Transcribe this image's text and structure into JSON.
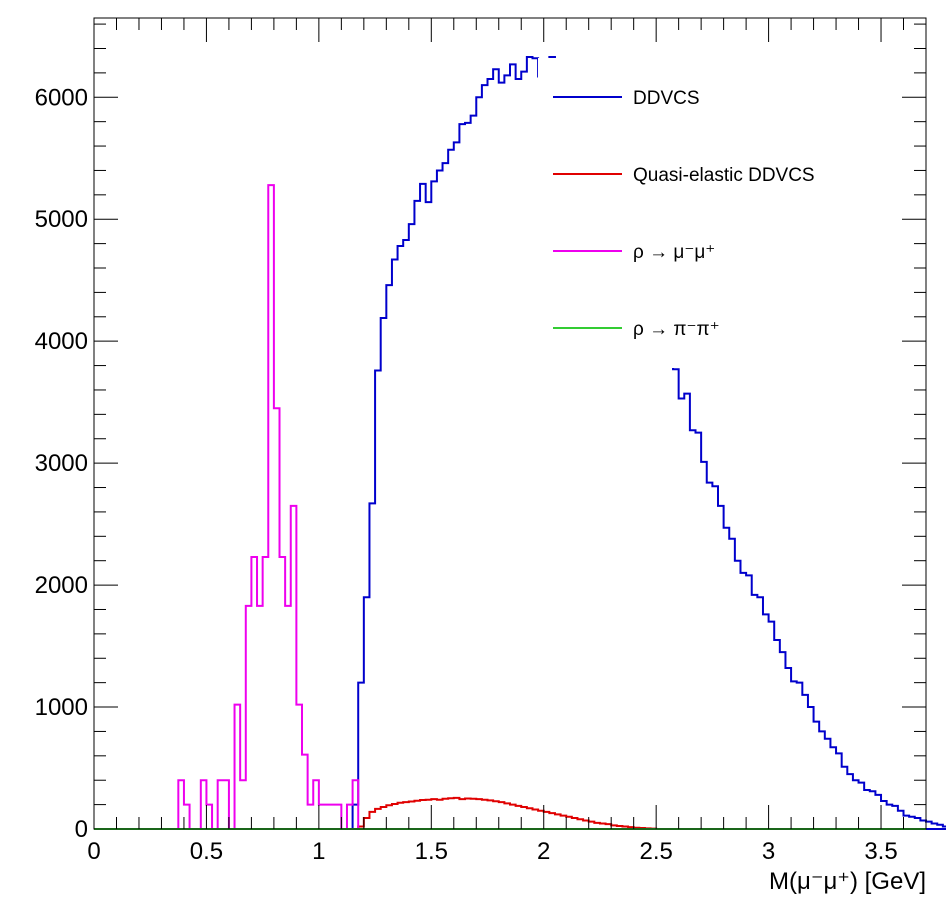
{
  "chart_data": {
    "type": "line",
    "title": "",
    "xlabel": "M(μ⁻μ⁺) [GeV]",
    "ylabel": "",
    "xlim": [
      0,
      3.7
    ],
    "ylim": [
      0,
      6650
    ],
    "x_major_ticks": [
      0,
      0.5,
      1,
      1.5,
      2,
      2.5,
      3,
      3.5
    ],
    "x_tick_labels": [
      "0",
      "0.5",
      "1",
      "1.5",
      "2",
      "2.5",
      "3",
      "3.5"
    ],
    "y_major_ticks": [
      0,
      1000,
      2000,
      3000,
      4000,
      5000,
      6000
    ],
    "y_tick_labels": [
      "0",
      "1000",
      "2000",
      "3000",
      "4000",
      "5000",
      "6000"
    ],
    "grid": false,
    "legend_position": "top-right",
    "series": [
      {
        "name": "DDVCS",
        "color": "#0000cc",
        "style": "step",
        "bin_width": 0.025,
        "x_start": 1.1,
        "values": [
          0,
          0,
          200,
          1200,
          1900,
          2670,
          3760,
          4190,
          4460,
          4670,
          4780,
          4830,
          4960,
          5150,
          5290,
          5140,
          5310,
          5400,
          5460,
          5570,
          5630,
          5780,
          5790,
          5850,
          6000,
          6100,
          6150,
          6230,
          6120,
          6180,
          6270,
          6150,
          6210,
          6330,
          6320,
          6170,
          6210,
          6330,
          6160,
          6000,
          5870,
          5740,
          5640,
          5600,
          5590,
          5280,
          5340,
          5100,
          4900,
          4800,
          4720,
          4650,
          4550,
          4450,
          4350,
          4200,
          4100,
          4000,
          3900,
          3770,
          3530,
          3570,
          3270,
          3250,
          3010,
          2840,
          2810,
          2650,
          2470,
          2380,
          2200,
          2100,
          2080,
          1920,
          1900,
          1760,
          1700,
          1550,
          1450,
          1320,
          1210,
          1200,
          1100,
          1000,
          880,
          800,
          740,
          670,
          620,
          510,
          450,
          400,
          380,
          320,
          310,
          280,
          230,
          200,
          190,
          150,
          110,
          100,
          90,
          70,
          60,
          45,
          35,
          20,
          15,
          10
        ]
      },
      {
        "name": "Quasi-elastic DDVCS",
        "color": "#e00000",
        "style": "step",
        "bin_width": 0.025,
        "x_start": 1.15,
        "values": [
          0,
          20,
          90,
          140,
          165,
          180,
          195,
          205,
          215,
          220,
          225,
          232,
          238,
          240,
          245,
          240,
          248,
          252,
          255,
          245,
          250,
          248,
          245,
          240,
          235,
          228,
          220,
          210,
          200,
          190,
          180,
          170,
          160,
          150,
          140,
          130,
          120,
          110,
          100,
          90,
          80,
          70,
          60,
          50,
          45,
          40,
          30,
          25,
          20,
          15,
          10,
          8,
          5,
          3
        ]
      },
      {
        "name": "ρ → μ⁻μ⁺",
        "color": "#ee00ee",
        "style": "step",
        "bin_width": 0.025,
        "x_start": 0.35,
        "values": [
          0,
          400,
          200,
          0,
          0,
          400,
          200,
          0,
          400,
          400,
          0,
          1020,
          400,
          1830,
          2230,
          1830,
          2230,
          5280,
          3450,
          2230,
          1830,
          2650,
          1020,
          610,
          200,
          400,
          200,
          200,
          200,
          200,
          0,
          200,
          400,
          0
        ]
      },
      {
        "name": "ρ → π⁻π⁺",
        "color": "#33cc33",
        "style": "step",
        "bin_width": 0.025,
        "x_start": 0.0,
        "values": [
          0
        ]
      }
    ]
  }
}
